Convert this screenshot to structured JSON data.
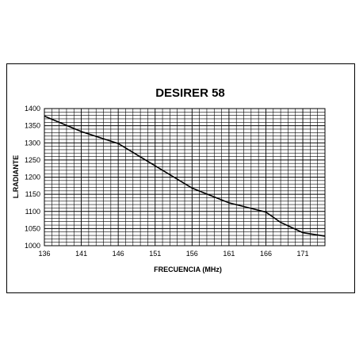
{
  "chart_data": {
    "type": "line",
    "title": "DESIRER  58",
    "xlabel": "FRECUENCIA  (MHz)",
    "ylabel": "L.RADIANTE",
    "xlim": [
      136,
      174
    ],
    "ylim": [
      1000,
      1400
    ],
    "xticks": [
      136,
      141,
      146,
      151,
      156,
      161,
      166,
      171
    ],
    "yticks": [
      1000,
      1050,
      1100,
      1150,
      1200,
      1250,
      1300,
      1350,
      1400
    ],
    "grid": true,
    "series": [
      {
        "x": [
          136,
          141,
          146,
          151,
          156,
          161,
          166,
          168,
          171,
          174
        ],
        "y": [
          1378,
          1333,
          1298,
          1233,
          1168,
          1125,
          1098,
          1068,
          1038,
          1028
        ]
      }
    ]
  }
}
